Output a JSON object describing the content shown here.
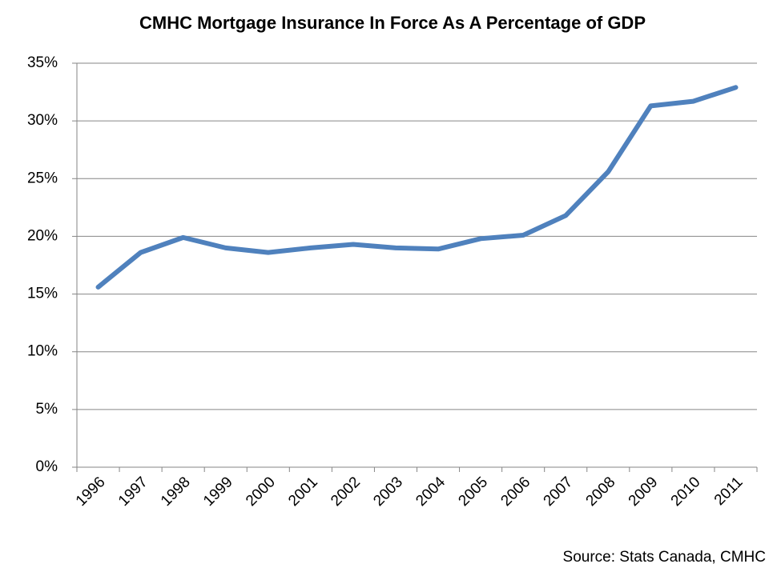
{
  "chart_data": {
    "type": "line",
    "title": "CMHC Mortgage Insurance In Force As A Percentage of GDP",
    "source": "Source: Stats Canada, CMHC",
    "categories": [
      "1996",
      "1997",
      "1998",
      "1999",
      "2000",
      "2001",
      "2002",
      "2003",
      "2004",
      "2005",
      "2006",
      "2007",
      "2008",
      "2009",
      "2010",
      "2011"
    ],
    "values": [
      15.6,
      18.6,
      19.9,
      19.0,
      18.6,
      19.0,
      19.3,
      19.0,
      18.9,
      19.8,
      20.1,
      21.8,
      25.6,
      31.3,
      31.7,
      32.9
    ],
    "color": "#4f81bd",
    "ylim": [
      0,
      35
    ],
    "yticks": [
      {
        "value": 0,
        "label": "0%"
      },
      {
        "value": 5,
        "label": "5%"
      },
      {
        "value": 10,
        "label": "10%"
      },
      {
        "value": 15,
        "label": "15%"
      },
      {
        "value": 20,
        "label": "20%"
      },
      {
        "value": 25,
        "label": "25%"
      },
      {
        "value": 30,
        "label": "30%"
      },
      {
        "value": 35,
        "label": "35%"
      }
    ],
    "grid": true
  }
}
